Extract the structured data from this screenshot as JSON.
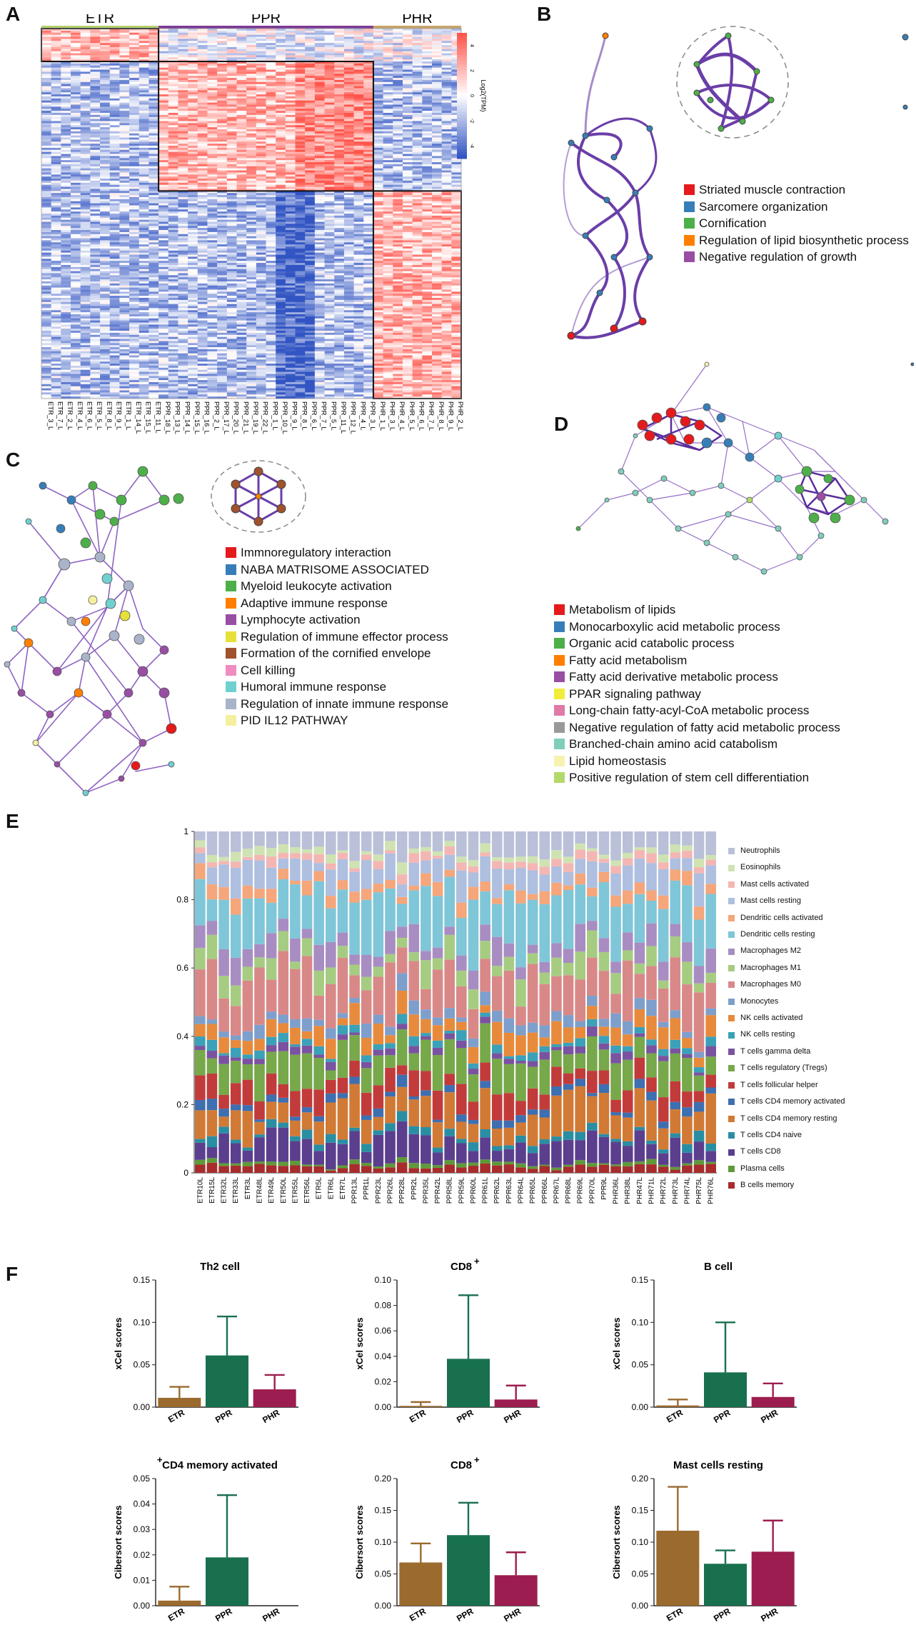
{
  "panels": {
    "A": "A",
    "B": "B",
    "C": "C",
    "D": "D",
    "E": "E",
    "F": "F"
  },
  "heatmap": {
    "groups": [
      {
        "name": "ETR",
        "color": "#b5d16d"
      },
      {
        "name": "PPR",
        "color": "#7d3b96"
      },
      {
        "name": "PHR",
        "color": "#c6a46a"
      }
    ],
    "colorbar_label": "Log2(TPM)",
    "colorbar_ticks": [
      "4",
      "2",
      "0",
      "-2",
      "-4"
    ],
    "samples": [
      "ETR_3_L",
      "ETR_7_L",
      "ETR_2_L",
      "ETR_4_L",
      "ETR_6_L",
      "ETR_5_L",
      "ETR_8_L",
      "ETR_9_L",
      "ETR_1_L",
      "ETR_14_L",
      "ETR_15_L",
      "ETR_11_L",
      "PPR_18_L",
      "PPR_13_L",
      "PPR_14_L",
      "PPR_15_L",
      "PPR_16_L",
      "PPR_2_L",
      "PPR_17_L",
      "PPR_20_L",
      "PPR_21_L",
      "PPR_19_L",
      "PPR_22_L",
      "PPR_1_L",
      "PPR_10_L",
      "PPR_9_L",
      "PPR_8_L",
      "PPR_6_L",
      "PPR_7_L",
      "PPR_5_L",
      "PPR_11_L",
      "PPR_12_L",
      "PPR_4_L",
      "PPR_3_L",
      "PHR_1_L",
      "PHR_3_L",
      "PHR_4_L",
      "PHR_5_L",
      "PHR_6_L",
      "PHR_7_L",
      "PHR_8_L",
      "PHR_9_L",
      "PHR_2_L"
    ]
  },
  "legendB": [
    {
      "label": "Striated muscle contraction",
      "color": "#e41a1c"
    },
    {
      "label": "Sarcomere organization",
      "color": "#377eb8"
    },
    {
      "label": "Cornification",
      "color": "#4daf4a"
    },
    {
      "label": "Regulation of lipid biosynthetic process",
      "color": "#ff7f00"
    },
    {
      "label": "Negative regulation of growth",
      "color": "#984ea3"
    }
  ],
  "legendC": [
    {
      "label": "Immnoregulatory interaction",
      "color": "#e41a1c"
    },
    {
      "label": "NABA MATRISOME ASSOCIATED",
      "color": "#377eb8"
    },
    {
      "label": "Myeloid leukocyte activation",
      "color": "#4daf4a"
    },
    {
      "label": "Adaptive immune response",
      "color": "#ff7f00"
    },
    {
      "label": "Lymphocyte activation",
      "color": "#984ea3"
    },
    {
      "label": "Regulation of immune effector process",
      "color": "#e6e03a"
    },
    {
      "label": "Formation of the cornified envelope",
      "color": "#a0522d"
    },
    {
      "label": "Cell killing",
      "color": "#f08cc0"
    },
    {
      "label": "Humoral immune response",
      "color": "#6fd0d0"
    },
    {
      "label": "Regulation of innate immune response",
      "color": "#a9b3c9"
    },
    {
      "label": "PID IL12 PATHWAY",
      "color": "#f5f0a0"
    }
  ],
  "legendD": [
    {
      "label": "Metabolism of lipids",
      "color": "#e41a1c"
    },
    {
      "label": "Monocarboxylic acid metabolic process",
      "color": "#377eb8"
    },
    {
      "label": "Organic acid catabolic process",
      "color": "#4daf4a"
    },
    {
      "label": "Fatty acid metabolism",
      "color": "#ff7f00"
    },
    {
      "label": "Fatty acid derivative metabolic process",
      "color": "#984ea3"
    },
    {
      "label": "PPAR signaling pathway",
      "color": "#f2ec3a"
    },
    {
      "label": "Long-chain fatty-acyl-CoA metabolic process",
      "color": "#e07aa6"
    },
    {
      "label": "Negative regulation of fatty acid metabolic process",
      "color": "#999999"
    },
    {
      "label": "Branched-chain amino acid catabolism",
      "color": "#7fcdbb"
    },
    {
      "label": "Lipid homeostasis",
      "color": "#f7f2b0"
    },
    {
      "label": "Positive regulation of stem cell differentiation",
      "color": "#b3d96b"
    }
  ],
  "chart_data": [
    {
      "type": "bar",
      "stacked": true,
      "title": "",
      "ylim": [
        0,
        1
      ],
      "yticks": [
        "0",
        "0.2",
        "0.4",
        "0.6",
        "0.8",
        "1"
      ],
      "categories": [
        "ETR10L",
        "ETR15L",
        "ETR32L",
        "ETR33L",
        "ETR3L",
        "ETR48L",
        "ETR49L",
        "ETR50L",
        "ETR55L",
        "ETR56L",
        "ETR5L",
        "ETR6L",
        "ETR7L",
        "PPR13L",
        "PPR1L",
        "PPR23L",
        "PPR26L",
        "PPR28L",
        "PPR2L",
        "PPR35L",
        "PPR42L",
        "PPR58L",
        "PPR59L",
        "PPR60L",
        "PPR61L",
        "PPR62L",
        "PPR63L",
        "PPR64L",
        "PPR65L",
        "PPR66L",
        "PPR67L",
        "PPR68L",
        "PPR69L",
        "PPR70L",
        "PPR9L",
        "PHR36L",
        "PHR38L",
        "PHR47L",
        "PHR71L",
        "PHR72L",
        "PHR73L",
        "PHR74L",
        "PHR75L",
        "PHR76L"
      ],
      "series": [
        {
          "name": "Neutrophils",
          "color": "#b9c0d8"
        },
        {
          "name": "Eosinophils",
          "color": "#cfe3b2"
        },
        {
          "name": "Mast cells activated",
          "color": "#f4b6b3"
        },
        {
          "name": "Mast cells resting",
          "color": "#aebfe0"
        },
        {
          "name": "Dendritic cells activated",
          "color": "#f5a67a"
        },
        {
          "name": "Dendritic cells resting",
          "color": "#7fc6d8"
        },
        {
          "name": "Macrophages M2",
          "color": "#a88dc2"
        },
        {
          "name": "Macrophages M1",
          "color": "#a6cc82"
        },
        {
          "name": "Macrophages M0",
          "color": "#d98888"
        },
        {
          "name": "Monocytes",
          "color": "#7e9fcc"
        },
        {
          "name": "NK cells activated",
          "color": "#e88a3c"
        },
        {
          "name": "NK cells resting",
          "color": "#3ba1b8"
        },
        {
          "name": "T cells gamma delta",
          "color": "#7a53a0"
        },
        {
          "name": "T cells regulatory (Tregs)",
          "color": "#77a84a"
        },
        {
          "name": "T cells follicular helper",
          "color": "#c23b3b"
        },
        {
          "name": "T cells CD4 memory activated",
          "color": "#3e6fb0"
        },
        {
          "name": "T cells CD4 memory resting",
          "color": "#d17a35"
        },
        {
          "name": "T cells CD4 naive",
          "color": "#2a8ea3"
        },
        {
          "name": "T cells CD8",
          "color": "#5b3f8e"
        },
        {
          "name": "Plasma cells",
          "color": "#5f9a3a"
        },
        {
          "name": "B cells memory",
          "color": "#a82c2c"
        }
      ]
    },
    {
      "type": "bar",
      "title": "Th2 cell",
      "title_sup": "",
      "ylabel": "xCel scores",
      "categories": [
        "ETR",
        "PPR",
        "PHR"
      ],
      "values": [
        0.011,
        0.061,
        0.021
      ],
      "errors": [
        0.024,
        0.107,
        0.038
      ],
      "ylim": [
        0,
        0.15
      ],
      "yticks": [
        "0.00",
        "0.05",
        "0.10",
        "0.15"
      ],
      "colors": [
        "#9a6a2e",
        "#18704e",
        "#9c1d4f"
      ]
    },
    {
      "type": "bar",
      "title": "CD8",
      "title_sup": "+",
      "ylabel": "xCel scores",
      "categories": [
        "ETR",
        "PPR",
        "PHR"
      ],
      "values": [
        0.001,
        0.038,
        0.006
      ],
      "errors": [
        0.004,
        0.088,
        0.017
      ],
      "ylim": [
        0,
        0.1
      ],
      "yticks": [
        "0.00",
        "0.02",
        "0.04",
        "0.06",
        "0.08",
        "0.10"
      ],
      "colors": [
        "#9a6a2e",
        "#18704e",
        "#9c1d4f"
      ]
    },
    {
      "type": "bar",
      "title": "B cell",
      "title_sup": "",
      "ylabel": "xCel scores",
      "categories": [
        "ETR",
        "PPR",
        "PHR"
      ],
      "values": [
        0.002,
        0.041,
        0.012
      ],
      "errors": [
        0.009,
        0.1,
        0.028
      ],
      "ylim": [
        0,
        0.15
      ],
      "yticks": [
        "0.00",
        "0.05",
        "0.10",
        "0.15"
      ],
      "colors": [
        "#9a6a2e",
        "#18704e",
        "#9c1d4f"
      ]
    },
    {
      "type": "bar",
      "title": "CD4 memory activated",
      "title_sup": "+",
      "ylabel": "Cibersort scores",
      "categories": [
        "ETR",
        "PPR",
        "PHR"
      ],
      "values": [
        0.002,
        0.019,
        0
      ],
      "errors": [
        0.0075,
        0.0435,
        0
      ],
      "ylim": [
        0,
        0.05
      ],
      "yticks": [
        "0.00",
        "0.01",
        "0.02",
        "0.03",
        "0.04",
        "0.05"
      ],
      "colors": [
        "#9a6a2e",
        "#18704e",
        "#9c1d4f"
      ]
    },
    {
      "type": "bar",
      "title": "CD8",
      "title_sup": "+",
      "ylabel": "Cibersort scores",
      "categories": [
        "ETR",
        "PPR",
        "PHR"
      ],
      "values": [
        0.068,
        0.111,
        0.048
      ],
      "errors": [
        0.098,
        0.162,
        0.084
      ],
      "ylim": [
        0,
        0.2
      ],
      "yticks": [
        "0.00",
        "0.05",
        "0.10",
        "0.15",
        "0.20"
      ],
      "colors": [
        "#9a6a2e",
        "#18704e",
        "#9c1d4f"
      ]
    },
    {
      "type": "bar",
      "title": "Mast cells resting",
      "title_sup": "",
      "ylabel": "Cibersort scores",
      "categories": [
        "ETR",
        "PPR",
        "PHR"
      ],
      "values": [
        0.118,
        0.066,
        0.085
      ],
      "errors": [
        0.187,
        0.087,
        0.134
      ],
      "ylim": [
        0,
        0.2
      ],
      "yticks": [
        "0.00",
        "0.05",
        "0.10",
        "0.15",
        "0.20"
      ],
      "colors": [
        "#9a6a2e",
        "#18704e",
        "#9c1d4f"
      ]
    }
  ]
}
